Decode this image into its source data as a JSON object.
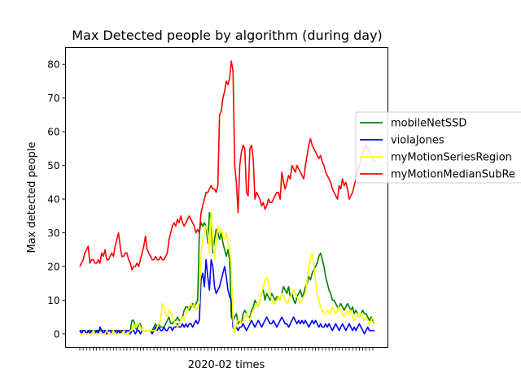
{
  "chart_data": {
    "type": "line",
    "title": "Max Detected people by algorithm (during day)",
    "xlabel": "2020-02 times",
    "ylabel": "Max detected people",
    "ylim": [
      -4,
      85
    ],
    "yticks": [
      0,
      10,
      20,
      30,
      40,
      50,
      60,
      70,
      80
    ],
    "x_count": 176,
    "x_tick_labels": "unlabeled",
    "grid": false,
    "legend": "right",
    "series": [
      {
        "name": "mobileNetSSD",
        "color": "#008000",
        "values": [
          1,
          1,
          1,
          1,
          0,
          1,
          1,
          0,
          1,
          1,
          1,
          1,
          1,
          1,
          1,
          1,
          0,
          1,
          1,
          1,
          1,
          1,
          1,
          1,
          1,
          1,
          1,
          1,
          1,
          1,
          1,
          4,
          4,
          2,
          1,
          3,
          3,
          1,
          1,
          1,
          1,
          1,
          1,
          1,
          2,
          3,
          2,
          3,
          2,
          2,
          2,
          3,
          4,
          5,
          3,
          3,
          4,
          4,
          5,
          4,
          4,
          5,
          7,
          8,
          8,
          7,
          8,
          9,
          8,
          9,
          10,
          30,
          33,
          32,
          33,
          32,
          27,
          36,
          34,
          24,
          28,
          31,
          30,
          28,
          30,
          27,
          25,
          23,
          25,
          22,
          5,
          4,
          5,
          6,
          3,
          4,
          3,
          6,
          7,
          6,
          5,
          5,
          7,
          8,
          10,
          9,
          8,
          10,
          12,
          13,
          10,
          12,
          11,
          10,
          12,
          11,
          10,
          11,
          11,
          10,
          12,
          14,
          13,
          12,
          14,
          11,
          12,
          10,
          9,
          11,
          12,
          13,
          11,
          12,
          14,
          15,
          17,
          16,
          18,
          19,
          20,
          21,
          23,
          24,
          22,
          20,
          17,
          15,
          13,
          12,
          10,
          10,
          9,
          8,
          8,
          9,
          8,
          7,
          8,
          9,
          8,
          7,
          8,
          6,
          7,
          6,
          5,
          6,
          7,
          6,
          6,
          5,
          4,
          5,
          4,
          3
        ]
      },
      {
        "name": "violaJones",
        "color": "#0000ff",
        "values": [
          1,
          0,
          1,
          1,
          0,
          1,
          0,
          1,
          1,
          0,
          1,
          0,
          2,
          1,
          0,
          1,
          0,
          1,
          1,
          0,
          1,
          1,
          0,
          1,
          0,
          1,
          1,
          0,
          1,
          1,
          0,
          1,
          1,
          0,
          1,
          1,
          0,
          1,
          1,
          1,
          1,
          1,
          1,
          0,
          1,
          2,
          1,
          2,
          1,
          1,
          2,
          1,
          1,
          2,
          2,
          1,
          2,
          2,
          3,
          2,
          2,
          3,
          2,
          3,
          2,
          3,
          3,
          2,
          3,
          4,
          3,
          4,
          16,
          18,
          14,
          22,
          17,
          13,
          22,
          20,
          14,
          12,
          13,
          14,
          16,
          18,
          20,
          17,
          13,
          11,
          10,
          2,
          1,
          2,
          1,
          2,
          2,
          3,
          2,
          1,
          2,
          3,
          4,
          3,
          2,
          3,
          4,
          3,
          2,
          3,
          4,
          5,
          4,
          3,
          3,
          4,
          3,
          2,
          3,
          4,
          5,
          4,
          3,
          3,
          2,
          3,
          4,
          5,
          4,
          3,
          4,
          3,
          4,
          3,
          4,
          3,
          2,
          3,
          4,
          3,
          4,
          3,
          2,
          3,
          2,
          2,
          3,
          2,
          3,
          2,
          1,
          2,
          3,
          2,
          1,
          2,
          3,
          2,
          1,
          2,
          3,
          2,
          1,
          2,
          1,
          2,
          3,
          2,
          1,
          0,
          1,
          2,
          1,
          1,
          1,
          1
        ]
      },
      {
        "name": "myMotionSeriesRegion",
        "color": "#ffff00",
        "values": [
          0,
          0,
          0,
          0,
          0,
          0,
          0,
          0,
          1,
          0,
          0,
          0,
          0,
          0,
          0,
          0,
          1,
          0,
          0,
          0,
          1,
          0,
          0,
          0,
          0,
          0,
          1,
          0,
          0,
          0,
          1,
          1,
          3,
          2,
          3,
          3,
          2,
          1,
          1,
          1,
          1,
          1,
          1,
          1,
          1,
          1,
          2,
          3,
          4,
          9,
          8,
          6,
          5,
          7,
          6,
          5,
          4,
          3,
          2,
          3,
          4,
          5,
          4,
          6,
          7,
          8,
          9,
          8,
          9,
          7,
          8,
          9,
          24,
          28,
          30,
          32,
          30,
          24,
          36,
          28,
          22,
          27,
          32,
          30,
          31,
          29,
          28,
          30,
          27,
          25,
          20,
          4,
          0,
          3,
          4,
          4,
          3,
          4,
          5,
          6,
          5,
          4,
          6,
          7,
          8,
          9,
          8,
          10,
          12,
          14,
          16,
          17,
          15,
          12,
          10,
          9,
          9,
          10,
          11,
          10,
          12,
          11,
          10,
          9,
          10,
          11,
          12,
          13,
          12,
          11,
          10,
          9,
          10,
          11,
          12,
          16,
          20,
          22,
          24,
          20,
          16,
          12,
          10,
          8,
          7,
          6,
          6,
          7,
          6,
          6,
          8,
          7,
          6,
          7,
          8,
          7,
          6,
          5,
          6,
          7,
          6,
          7,
          5,
          4,
          5,
          6,
          5,
          6,
          5,
          4,
          5,
          4,
          3,
          4,
          5,
          3
        ]
      },
      {
        "name": "myMotionMedianSubRe",
        "color": "#ff0000",
        "values": [
          20,
          21,
          22,
          24,
          25,
          26,
          21,
          22,
          22,
          21,
          21,
          22,
          21,
          24,
          23,
          25,
          22,
          22,
          23,
          24,
          23,
          26,
          28,
          30,
          26,
          23,
          23,
          24,
          24,
          22,
          21,
          19,
          20,
          20,
          21,
          20,
          22,
          24,
          26,
          29,
          25,
          24,
          23,
          22,
          22,
          23,
          22,
          22,
          23,
          22,
          22,
          23,
          24,
          28,
          30,
          32,
          33,
          32,
          34,
          33,
          35,
          33,
          32,
          33,
          34,
          35,
          34,
          33,
          32,
          30,
          31,
          30,
          36,
          38,
          40,
          42,
          42,
          43,
          44,
          43,
          43,
          42,
          44,
          65,
          66,
          70,
          72,
          75,
          74,
          76,
          81,
          78,
          50,
          45,
          36,
          50,
          54,
          56,
          55,
          42,
          41,
          55,
          56,
          52,
          40,
          42,
          41,
          40,
          38,
          39,
          37,
          38,
          40,
          39,
          39,
          40,
          41,
          42,
          42,
          40,
          48,
          45,
          43,
          45,
          47,
          46,
          50,
          49,
          48,
          50,
          49,
          48,
          47,
          46,
          50,
          53,
          56,
          58,
          56,
          55,
          54,
          53,
          52,
          53,
          51,
          50,
          48,
          47,
          46,
          45,
          43,
          42,
          41,
          40,
          44,
          43,
          46,
          44,
          45,
          43,
          40,
          41,
          42,
          44,
          46,
          48,
          50,
          52,
          54,
          55,
          56,
          55,
          54,
          53,
          52,
          51
        ]
      }
    ]
  }
}
